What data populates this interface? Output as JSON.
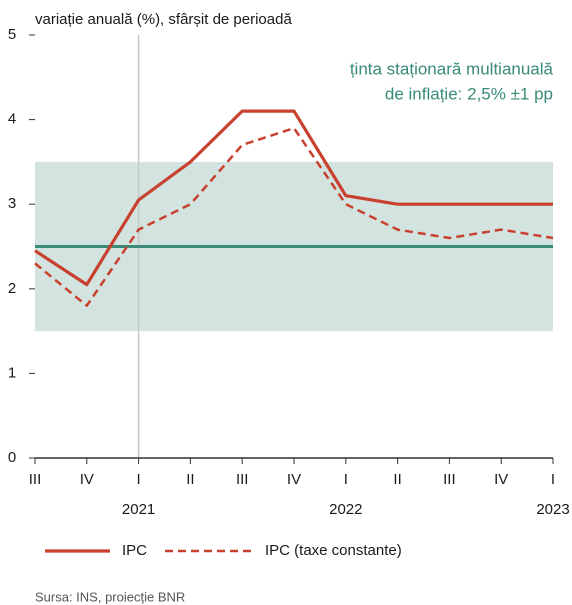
{
  "chart_data": {
    "type": "line",
    "y_axis_label": "variație anuală (%), sfârșit de perioadă",
    "annotation": [
      "ținta staționară multianuală",
      "de inflație: 2,5% ±1 pp"
    ],
    "categories": [
      "III",
      "IV",
      "I",
      "II",
      "III",
      "IV",
      "I",
      "II",
      "III",
      "IV",
      "I"
    ],
    "year_labels": [
      null,
      null,
      "2021",
      null,
      null,
      null,
      "2022",
      null,
      null,
      null,
      "2023"
    ],
    "series": [
      {
        "name": "IPC",
        "color": "#c8402e",
        "dash": false,
        "values": [
          2.45,
          2.05,
          3.05,
          3.5,
          4.1,
          4.1,
          3.1,
          3.0,
          3.0,
          3.0,
          3.0
        ]
      },
      {
        "name": "IPC (taxe constante)",
        "color": "#c8402e",
        "dash": true,
        "values": [
          2.3,
          1.8,
          2.7,
          3.0,
          3.7,
          3.9,
          3.0,
          2.7,
          2.6,
          2.7,
          2.6
        ]
      }
    ],
    "target": 2.5,
    "target_color": "#3a8a78",
    "target_band": [
      1.5,
      3.5
    ],
    "band_color": "#d3e4e0",
    "ylim": [
      0,
      5
    ],
    "yticks": [
      0,
      1,
      2,
      3,
      4,
      5
    ],
    "source": "Sursa: INS, proiecție BNR"
  }
}
